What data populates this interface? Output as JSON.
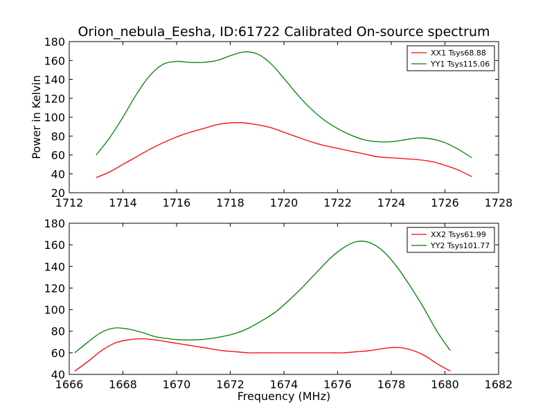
{
  "figure": {
    "title": "Orion_nebula_Eesha, ID:61722 Calibrated On-source spectrum"
  },
  "chart_data": [
    {
      "type": "line",
      "title": "Orion_nebula_Eesha, ID:61722 Calibrated On-source spectrum",
      "xlabel": "",
      "ylabel": "Power in Kelvin",
      "xlim": [
        1712,
        1728
      ],
      "ylim": [
        20,
        180
      ],
      "xticks": [
        1712,
        1714,
        1716,
        1718,
        1720,
        1722,
        1724,
        1726,
        1728
      ],
      "yticks": [
        20,
        40,
        60,
        80,
        100,
        120,
        140,
        160,
        180
      ],
      "legend_position": "upper-right",
      "series": [
        {
          "name": "XX1 Tsys68.88",
          "color": "#ff0000",
          "x": [
            1713.0,
            1713.5,
            1714.0,
            1714.5,
            1715.0,
            1715.5,
            1716.0,
            1716.5,
            1717.0,
            1717.5,
            1718.0,
            1718.5,
            1719.0,
            1719.5,
            1720.0,
            1720.5,
            1721.0,
            1721.5,
            1722.0,
            1722.5,
            1723.0,
            1723.5,
            1724.0,
            1724.5,
            1725.0,
            1725.5,
            1726.0,
            1726.5,
            1727.0
          ],
          "y": [
            36,
            42,
            50,
            58,
            66,
            73,
            79,
            84,
            88,
            92,
            94,
            94,
            92,
            89,
            84,
            79,
            74,
            70,
            67,
            64,
            61,
            58,
            57,
            56,
            55,
            53,
            49,
            44,
            37
          ]
        },
        {
          "name": "YY1 Tsys115.06",
          "color": "#008000",
          "x": [
            1713.0,
            1713.5,
            1714.0,
            1714.5,
            1715.0,
            1715.5,
            1716.0,
            1716.5,
            1717.0,
            1717.5,
            1718.0,
            1718.5,
            1719.0,
            1719.5,
            1720.0,
            1720.5,
            1721.0,
            1721.5,
            1722.0,
            1722.5,
            1723.0,
            1723.5,
            1724.0,
            1724.5,
            1725.0,
            1725.5,
            1726.0,
            1726.5,
            1727.0
          ],
          "y": [
            60,
            78,
            100,
            124,
            144,
            156,
            159,
            158,
            158,
            160,
            165,
            169,
            167,
            157,
            141,
            124,
            109,
            97,
            88,
            81,
            76,
            74,
            74,
            76,
            78,
            77,
            73,
            66,
            57
          ]
        }
      ]
    },
    {
      "type": "line",
      "title": "",
      "xlabel": "Frequency (MHz)",
      "ylabel": "",
      "xlim": [
        1666,
        1682
      ],
      "ylim": [
        40,
        180
      ],
      "xticks": [
        1666,
        1668,
        1670,
        1672,
        1674,
        1676,
        1678,
        1680,
        1682
      ],
      "yticks": [
        40,
        60,
        80,
        100,
        120,
        140,
        160,
        180
      ],
      "legend_position": "upper-right",
      "series": [
        {
          "name": "XX2 Tsys61.99",
          "color": "#ff0000",
          "x": [
            1666.2,
            1666.7,
            1667.2,
            1667.7,
            1668.2,
            1668.7,
            1669.2,
            1669.7,
            1670.2,
            1670.7,
            1671.2,
            1671.7,
            1672.2,
            1672.7,
            1673.2,
            1673.7,
            1674.2,
            1674.7,
            1675.2,
            1675.7,
            1676.2,
            1676.7,
            1677.2,
            1677.7,
            1678.2,
            1678.7,
            1679.2,
            1679.7,
            1680.2
          ],
          "y": [
            43,
            52,
            62,
            69,
            72,
            73,
            72,
            70,
            68,
            66,
            64,
            62,
            61,
            60,
            60,
            60,
            60,
            60,
            60,
            60,
            60,
            61,
            62,
            64,
            65,
            63,
            58,
            50,
            43
          ]
        },
        {
          "name": "YY2 Tsys101.77",
          "color": "#008000",
          "x": [
            1666.2,
            1666.7,
            1667.2,
            1667.7,
            1668.2,
            1668.7,
            1669.2,
            1669.7,
            1670.2,
            1670.7,
            1671.2,
            1671.7,
            1672.2,
            1672.7,
            1673.2,
            1673.7,
            1674.2,
            1674.7,
            1675.2,
            1675.7,
            1676.2,
            1676.7,
            1677.2,
            1677.7,
            1678.2,
            1678.7,
            1679.2,
            1679.7,
            1680.2
          ],
          "y": [
            60,
            70,
            79,
            83,
            82,
            79,
            75,
            73,
            72,
            72,
            73,
            75,
            78,
            83,
            90,
            98,
            109,
            121,
            134,
            147,
            157,
            163,
            162,
            154,
            140,
            122,
            102,
            80,
            62
          ]
        }
      ]
    }
  ]
}
